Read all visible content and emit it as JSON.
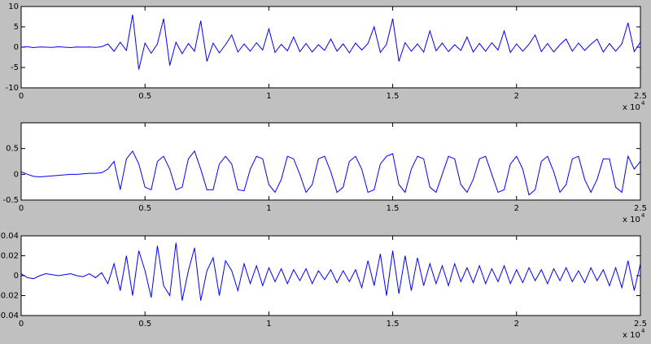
{
  "chart_data": [
    {
      "type": "line",
      "x": [
        0,
        250,
        500,
        750,
        1000,
        1250,
        1500,
        1750,
        2000,
        2250,
        2500,
        2750,
        3000,
        3250,
        3500,
        3750,
        4000,
        4250,
        4500,
        4750,
        5000,
        5250,
        5500,
        5750,
        6000,
        6250,
        6500,
        6750,
        7000,
        7250,
        7500,
        7750,
        8000,
        8250,
        8500,
        8750,
        9000,
        9250,
        9500,
        9750,
        10000,
        10250,
        10500,
        10750,
        11000,
        11250,
        11500,
        11750,
        12000,
        12250,
        12500,
        12750,
        13000,
        13250,
        13500,
        13750,
        14000,
        14250,
        14500,
        14750,
        15000,
        15250,
        15500,
        15750,
        16000,
        16250,
        16500,
        16750,
        17000,
        17250,
        17500,
        17750,
        18000,
        18250,
        18500,
        18750,
        19000,
        19250,
        19500,
        19750,
        20000,
        20250,
        20500,
        20750,
        21000,
        21250,
        21500,
        21750,
        22000,
        22250,
        22500,
        22750,
        23000,
        23250,
        23500,
        23750,
        24000,
        24250,
        24500,
        24750,
        25000
      ],
      "series": [
        {
          "color": "#0000ff",
          "values": [
            0,
            0.1,
            -0.1,
            0.05,
            0,
            -0.05,
            0.1,
            0,
            -0.1,
            0.05,
            0,
            0.05,
            -0.05,
            0.1,
            0.8,
            -1,
            1.2,
            -0.8,
            8,
            -5.5,
            1,
            -1.5,
            0.8,
            7,
            -4.5,
            1.2,
            -1.6,
            0.9,
            -1,
            6.5,
            -3.5,
            1,
            -1.4,
            0.6,
            3,
            -1.2,
            0.8,
            -1,
            1.1,
            -0.7,
            4.5,
            -1.3,
            0.7,
            -0.9,
            2.5,
            -1.1,
            0.9,
            -1.2,
            0.6,
            -0.8,
            2,
            -1,
            0.8,
            -1.4,
            1,
            -0.7,
            0.9,
            5,
            -1.3,
            0.7,
            7,
            -3.5,
            1.1,
            -1,
            0.8,
            -1.2,
            4,
            -0.9,
            1,
            -1.1,
            0.6,
            -0.8,
            2.5,
            -1.2,
            0.9,
            -1,
            1.1,
            -0.7,
            4,
            -1.3,
            0.8,
            -1,
            0.7,
            3,
            -1.1,
            0.9,
            -1.2,
            0.6,
            2,
            -1,
            1,
            -0.8,
            0.7,
            2,
            -1.2,
            0.9,
            -1,
            0.8,
            6,
            -1.1,
            1.2
          ]
        }
      ],
      "xlim": [
        0,
        25000
      ],
      "xticks": [
        0,
        {
          "value": 5000,
          "label": "0.5"
        },
        {
          "value": 10000,
          "label": "1"
        },
        {
          "value": 15000,
          "label": "1.5"
        },
        {
          "value": 20000,
          "label": "2"
        },
        {
          "value": 25000,
          "label": "2.5"
        }
      ],
      "x_multiplier": "x 10",
      "x_multiplier_exponent": "4",
      "ylim": [
        -10,
        10
      ],
      "yticks": [
        -10,
        -5,
        0,
        5,
        10
      ]
    },
    {
      "type": "line",
      "x": [
        0,
        250,
        500,
        750,
        1000,
        1250,
        1500,
        1750,
        2000,
        2250,
        2500,
        2750,
        3000,
        3250,
        3500,
        3750,
        4000,
        4250,
        4500,
        4750,
        5000,
        5250,
        5500,
        5750,
        6000,
        6250,
        6500,
        6750,
        7000,
        7250,
        7500,
        7750,
        8000,
        8250,
        8500,
        8750,
        9000,
        9250,
        9500,
        9750,
        10000,
        10250,
        10500,
        10750,
        11000,
        11250,
        11500,
        11750,
        12000,
        12250,
        12500,
        12750,
        13000,
        13250,
        13500,
        13750,
        14000,
        14250,
        14500,
        14750,
        15000,
        15250,
        15500,
        15750,
        16000,
        16250,
        16500,
        16750,
        17000,
        17250,
        17500,
        17750,
        18000,
        18250,
        18500,
        18750,
        19000,
        19250,
        19500,
        19750,
        20000,
        20250,
        20500,
        20750,
        21000,
        21250,
        21500,
        21750,
        22000,
        22250,
        22500,
        22750,
        23000,
        23250,
        23500,
        23750,
        24000,
        24250,
        24500,
        24750,
        25000
      ],
      "series": [
        {
          "color": "#0000ff",
          "values": [
            0.05,
            0,
            -0.04,
            -0.05,
            -0.04,
            -0.03,
            -0.02,
            -0.01,
            0,
            0,
            0.01,
            0.02,
            0.02,
            0.03,
            0.1,
            0.25,
            -0.3,
            0.3,
            0.45,
            0.2,
            -0.25,
            -0.3,
            0.25,
            0.35,
            0.1,
            -0.3,
            -0.25,
            0.3,
            0.45,
            0.1,
            -0.3,
            -0.3,
            0.2,
            0.35,
            0.2,
            -0.3,
            -0.32,
            0.1,
            0.35,
            0.3,
            -0.2,
            -0.35,
            -0.1,
            0.35,
            0.3,
            0,
            -0.35,
            -0.2,
            0.3,
            0.35,
            0.05,
            -0.35,
            -0.25,
            0.25,
            0.35,
            0.1,
            -0.35,
            -0.3,
            0.2,
            0.35,
            0.4,
            -0.2,
            -0.35,
            0.1,
            0.35,
            0.3,
            -0.25,
            -0.35,
            0,
            0.35,
            0.3,
            -0.2,
            -0.35,
            -0.1,
            0.3,
            0.35,
            0,
            -0.35,
            -0.3,
            0.2,
            0.35,
            0.1,
            -0.4,
            -0.3,
            0.25,
            0.35,
            0.05,
            -0.35,
            -0.2,
            0.3,
            0.35,
            -0.1,
            -0.35,
            -0.1,
            0.3,
            0.3,
            -0.25,
            -0.35,
            0.35,
            0.1,
            0.25
          ]
        }
      ],
      "xlim": [
        0,
        25000
      ],
      "xticks": [
        0,
        {
          "value": 5000,
          "label": "0.5"
        },
        {
          "value": 10000,
          "label": "1"
        },
        {
          "value": 15000,
          "label": "1.5"
        },
        {
          "value": 20000,
          "label": "2"
        },
        {
          "value": 25000,
          "label": "2.5"
        }
      ],
      "x_multiplier": "x 10",
      "x_multiplier_exponent": "4",
      "ylim": [
        -0.5,
        1
      ],
      "yticks": [
        -0.5,
        0,
        0.5
      ]
    },
    {
      "type": "line",
      "x": [
        0,
        250,
        500,
        750,
        1000,
        1250,
        1500,
        1750,
        2000,
        2250,
        2500,
        2750,
        3000,
        3250,
        3500,
        3750,
        4000,
        4250,
        4500,
        4750,
        5000,
        5250,
        5500,
        5750,
        6000,
        6250,
        6500,
        6750,
        7000,
        7250,
        7500,
        7750,
        8000,
        8250,
        8500,
        8750,
        9000,
        9250,
        9500,
        9750,
        10000,
        10250,
        10500,
        10750,
        11000,
        11250,
        11500,
        11750,
        12000,
        12250,
        12500,
        12750,
        13000,
        13250,
        13500,
        13750,
        14000,
        14250,
        14500,
        14750,
        15000,
        15250,
        15500,
        15750,
        16000,
        16250,
        16500,
        16750,
        17000,
        17250,
        17500,
        17750,
        18000,
        18250,
        18500,
        18750,
        19000,
        19250,
        19500,
        19750,
        20000,
        20250,
        20500,
        20750,
        21000,
        21250,
        21500,
        21750,
        22000,
        22250,
        22500,
        22750,
        23000,
        23250,
        23500,
        23750,
        24000,
        24250,
        24500,
        24750,
        25000
      ],
      "series": [
        {
          "color": "#0000ff",
          "values": [
            0.002,
            -0.002,
            -0.003,
            0,
            0.002,
            0.001,
            0,
            0.001,
            0.002,
            0,
            -0.001,
            0.002,
            -0.002,
            0.003,
            -0.008,
            0.012,
            -0.015,
            0.02,
            -0.02,
            0.025,
            0.005,
            -0.022,
            0.03,
            -0.01,
            -0.02,
            0.033,
            -0.025,
            0.005,
            0.028,
            -0.025,
            0.005,
            0.018,
            -0.02,
            0.015,
            0.005,
            -0.015,
            0.012,
            -0.008,
            0.01,
            -0.01,
            0.008,
            -0.006,
            0.007,
            -0.008,
            0.006,
            -0.005,
            0.007,
            -0.008,
            0.005,
            -0.004,
            0.006,
            -0.007,
            0.005,
            -0.006,
            0.006,
            -0.012,
            0.015,
            -0.01,
            0.022,
            -0.02,
            0.025,
            -0.018,
            0.02,
            -0.015,
            0.018,
            -0.01,
            0.012,
            -0.008,
            0.01,
            -0.01,
            0.012,
            -0.006,
            0.008,
            -0.007,
            0.01,
            -0.008,
            0.007,
            -0.006,
            0.01,
            -0.008,
            0.006,
            -0.007,
            0.008,
            -0.005,
            0.006,
            -0.008,
            0.007,
            -0.005,
            0.008,
            -0.006,
            0.005,
            -0.007,
            0.008,
            -0.005,
            0.006,
            -0.01,
            0.008,
            -0.012,
            0.015,
            -0.015,
            0.012
          ]
        }
      ],
      "xlim": [
        0,
        25000
      ],
      "xticks": [
        0,
        {
          "value": 5000,
          "label": "0.5"
        },
        {
          "value": 10000,
          "label": "1"
        },
        {
          "value": 15000,
          "label": "1.5"
        },
        {
          "value": 20000,
          "label": "2"
        },
        {
          "value": 25000,
          "label": "2.5"
        }
      ],
      "x_multiplier": "x 10",
      "x_multiplier_exponent": "4",
      "ylim": [
        -0.04,
        0.04
      ],
      "yticks": [
        -0.04,
        -0.02,
        0,
        0.02,
        0.04
      ]
    }
  ]
}
